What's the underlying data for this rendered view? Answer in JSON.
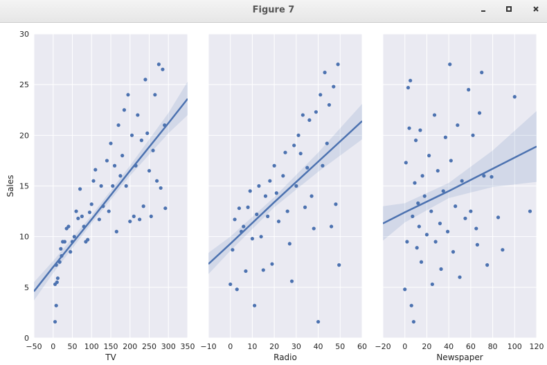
{
  "window": {
    "title": "Figure 7"
  },
  "chart_data": [
    {
      "type": "scatter",
      "xlabel": "TV",
      "ylabel": "Sales",
      "color": "#4c72b0",
      "x": [
        5,
        8,
        5,
        10,
        12,
        8,
        17,
        20,
        25,
        30,
        22,
        35,
        40,
        45,
        50,
        55,
        60,
        65,
        70,
        75,
        80,
        85,
        90,
        95,
        100,
        105,
        110,
        120,
        125,
        130,
        140,
        145,
        150,
        155,
        160,
        165,
        170,
        175,
        180,
        185,
        190,
        195,
        200,
        205,
        210,
        215,
        220,
        225,
        230,
        235,
        240,
        245,
        250,
        255,
        260,
        265,
        270,
        275,
        280,
        285,
        290,
        292
      ],
      "values": [
        1.6,
        3.2,
        5.3,
        5.5,
        5.9,
        7.2,
        7.5,
        8.8,
        9.5,
        9.5,
        8.1,
        10.8,
        11.0,
        8.5,
        9.5,
        10.0,
        12.5,
        11.8,
        14.7,
        12.0,
        11.0,
        9.5,
        9.7,
        12.4,
        13.2,
        15.5,
        16.6,
        11.7,
        15.0,
        13.0,
        17.5,
        12.5,
        19.2,
        15.0,
        17.0,
        10.5,
        21.0,
        16.0,
        18.0,
        22.5,
        15.0,
        24.0,
        11.5,
        20.0,
        12.0,
        17.0,
        22.0,
        11.7,
        19.5,
        13.0,
        25.5,
        20.2,
        16.5,
        12.0,
        18.5,
        24.0,
        15.5,
        27.0,
        14.8,
        26.5,
        21.0,
        12.8
      ],
      "fit": {
        "x": [
          -50,
          0,
          100,
          200,
          300,
          350
        ],
        "y": [
          4.6,
          7.0,
          11.7,
          16.5,
          21.2,
          23.6
        ],
        "lower": [
          3.7,
          6.4,
          11.3,
          16.0,
          20.2,
          22.0
        ],
        "upper": [
          5.5,
          7.6,
          12.1,
          17.0,
          22.2,
          25.3
        ]
      },
      "xlim": [
        -50,
        350
      ],
      "ylim": [
        0,
        30
      ],
      "xticks": [
        {
          "value": -50,
          "label": "−50"
        },
        0,
        50,
        100,
        150,
        200,
        250,
        300,
        350
      ],
      "yticks": [
        0,
        5,
        10,
        15,
        20,
        25,
        30
      ],
      "grid": true
    },
    {
      "type": "scatter",
      "xlabel": "Radio",
      "color": "#4c72b0",
      "x": [
        0,
        1,
        2,
        3,
        4,
        5,
        6,
        7,
        8,
        9,
        10,
        11,
        12,
        13,
        14,
        15,
        16,
        17,
        18,
        19,
        20,
        21,
        22,
        24,
        25,
        26,
        27,
        28,
        29,
        30,
        31,
        32,
        33,
        34,
        35,
        36,
        37,
        38,
        39,
        40,
        41,
        42,
        43,
        44,
        45,
        46,
        47,
        48,
        49,
        49.5
      ],
      "values": [
        5.3,
        8.7,
        11.7,
        4.8,
        12.8,
        10.5,
        11.0,
        6.6,
        12.9,
        14.5,
        9.8,
        3.2,
        12.2,
        15.0,
        10.0,
        6.7,
        14.0,
        12.0,
        15.5,
        7.3,
        17.0,
        14.3,
        11.5,
        16.0,
        18.3,
        12.5,
        9.3,
        5.6,
        19.0,
        15.0,
        20.0,
        18.2,
        22.0,
        12.9,
        16.8,
        21.5,
        14.0,
        10.8,
        22.3,
        1.6,
        24.0,
        17.0,
        26.2,
        19.2,
        23.0,
        11.0,
        24.8,
        13.2,
        27.0,
        7.2
      ],
      "fit": {
        "x": [
          -10,
          0,
          20,
          40,
          60
        ],
        "y": [
          7.3,
          9.3,
          13.4,
          17.4,
          21.4
        ],
        "lower": [
          6.3,
          8.6,
          12.9,
          16.4,
          19.6
        ],
        "upper": [
          8.4,
          10.0,
          13.9,
          18.3,
          23.1
        ]
      },
      "xlim": [
        -10,
        60
      ],
      "ylim": [
        0,
        30
      ],
      "xticks": [
        {
          "value": -10,
          "label": "−10"
        },
        0,
        10,
        20,
        30,
        40,
        50,
        60
      ],
      "grid": true
    },
    {
      "type": "scatter",
      "xlabel": "Newspaper",
      "color": "#4c72b0",
      "x": [
        0,
        1,
        2,
        3,
        4,
        5,
        6,
        7,
        8,
        9,
        10,
        11,
        12,
        13,
        14,
        15,
        16,
        18,
        20,
        22,
        24,
        25,
        27,
        28,
        30,
        32,
        33,
        35,
        37,
        39,
        41,
        42,
        44,
        46,
        48,
        50,
        52,
        55,
        58,
        60,
        62,
        65,
        66,
        68,
        70,
        72,
        75,
        79,
        85,
        89,
        100,
        114
      ],
      "values": [
        4.8,
        17.3,
        9.5,
        24.7,
        20.7,
        25.4,
        3.2,
        12.0,
        1.6,
        15.3,
        19.5,
        8.9,
        13.3,
        11.0,
        20.5,
        7.5,
        16.0,
        14.0,
        10.2,
        18.0,
        12.5,
        5.3,
        22.0,
        9.5,
        16.5,
        11.3,
        6.8,
        14.5,
        19.8,
        10.5,
        27.0,
        17.5,
        8.5,
        13.0,
        21.0,
        6.0,
        15.5,
        11.8,
        24.5,
        12.5,
        20.0,
        10.8,
        9.2,
        22.2,
        26.2,
        16.0,
        7.2,
        15.9,
        11.9,
        8.7,
        23.8,
        12.5
      ],
      "fit": {
        "x": [
          -20,
          0,
          40,
          80,
          120
        ],
        "y": [
          11.3,
          12.4,
          14.5,
          16.7,
          18.9
        ],
        "lower": [
          9.6,
          11.4,
          13.8,
          14.9,
          15.4
        ],
        "upper": [
          13.0,
          13.3,
          15.3,
          18.5,
          22.4
        ]
      },
      "xlim": [
        -20,
        120
      ],
      "ylim": [
        0,
        30
      ],
      "xticks": [
        {
          "value": -20,
          "label": "−20"
        },
        0,
        20,
        40,
        60,
        80,
        100,
        120
      ],
      "grid": true
    }
  ]
}
